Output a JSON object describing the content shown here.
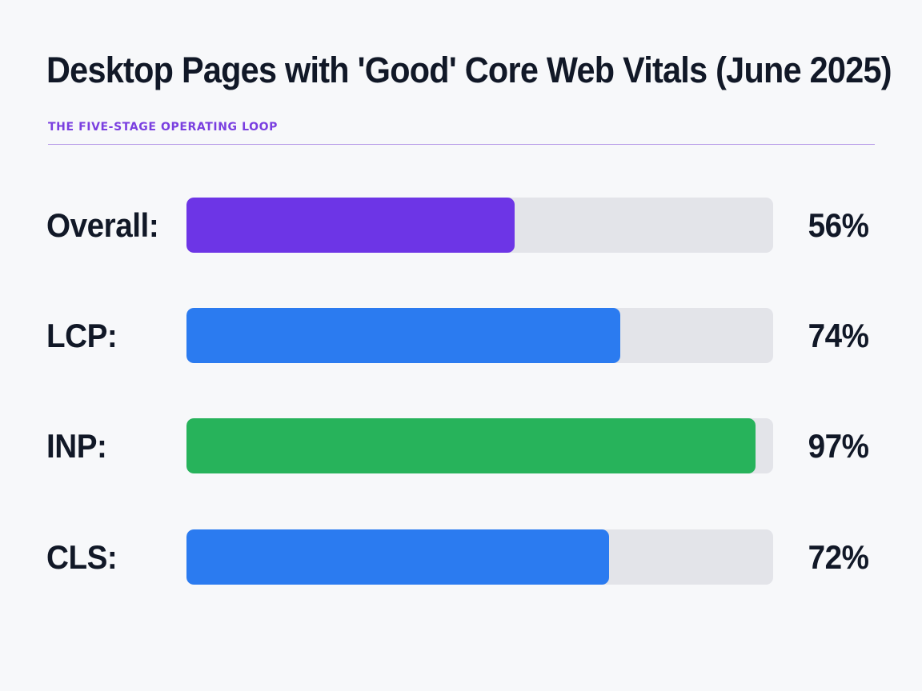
{
  "header": {
    "title": "Desktop Pages with 'Good' Core Web Vitals (June 2025)",
    "subtitle": "THE FIVE-STAGE OPERATING LOOP"
  },
  "colors": {
    "overall": "#6d35e6",
    "lcp": "#2b7bf0",
    "inp": "#27b35b",
    "cls": "#2b7bf0",
    "track": "#e3e4e9"
  },
  "chart_data": {
    "type": "bar",
    "orientation": "horizontal",
    "title": "Desktop Pages with 'Good' Core Web Vitals (June 2025)",
    "subtitle": "THE FIVE-STAGE OPERATING LOOP",
    "xlim": [
      0,
      100
    ],
    "grid": false,
    "legend": "none",
    "bars": [
      {
        "key": "overall",
        "label": "Overall:",
        "value": 56,
        "value_label": "56%",
        "color": "#6d35e6"
      },
      {
        "key": "lcp",
        "label": "LCP:",
        "value": 74,
        "value_label": "74%",
        "color": "#2b7bf0"
      },
      {
        "key": "inp",
        "label": "INP:",
        "value": 97,
        "value_label": "97%",
        "color": "#27b35b"
      },
      {
        "key": "cls",
        "label": "CLS:",
        "value": 72,
        "value_label": "72%",
        "color": "#2b7bf0"
      }
    ]
  }
}
